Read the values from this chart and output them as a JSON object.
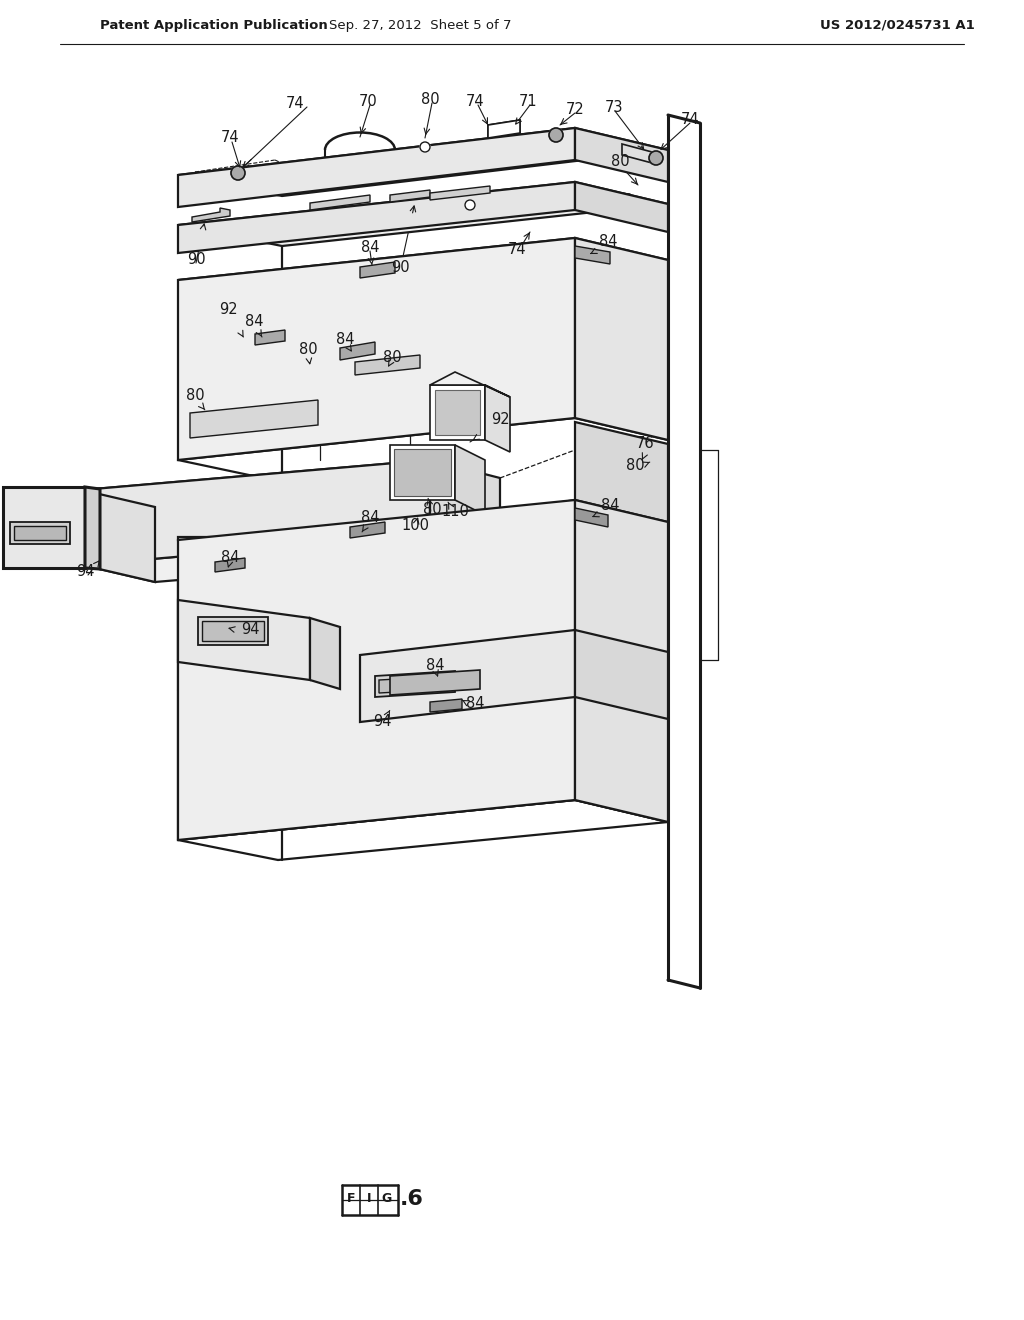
{
  "bg_color": "#ffffff",
  "line_color": "#1a1a1a",
  "header_left": "Patent Application Publication",
  "header_mid": "Sep. 27, 2012  Sheet 5 of 7",
  "header_right": "US 2012/0245731 A1",
  "lw_main": 1.6,
  "lw_thin": 0.9,
  "lw_thick": 2.2,
  "label_fs": 10.5
}
